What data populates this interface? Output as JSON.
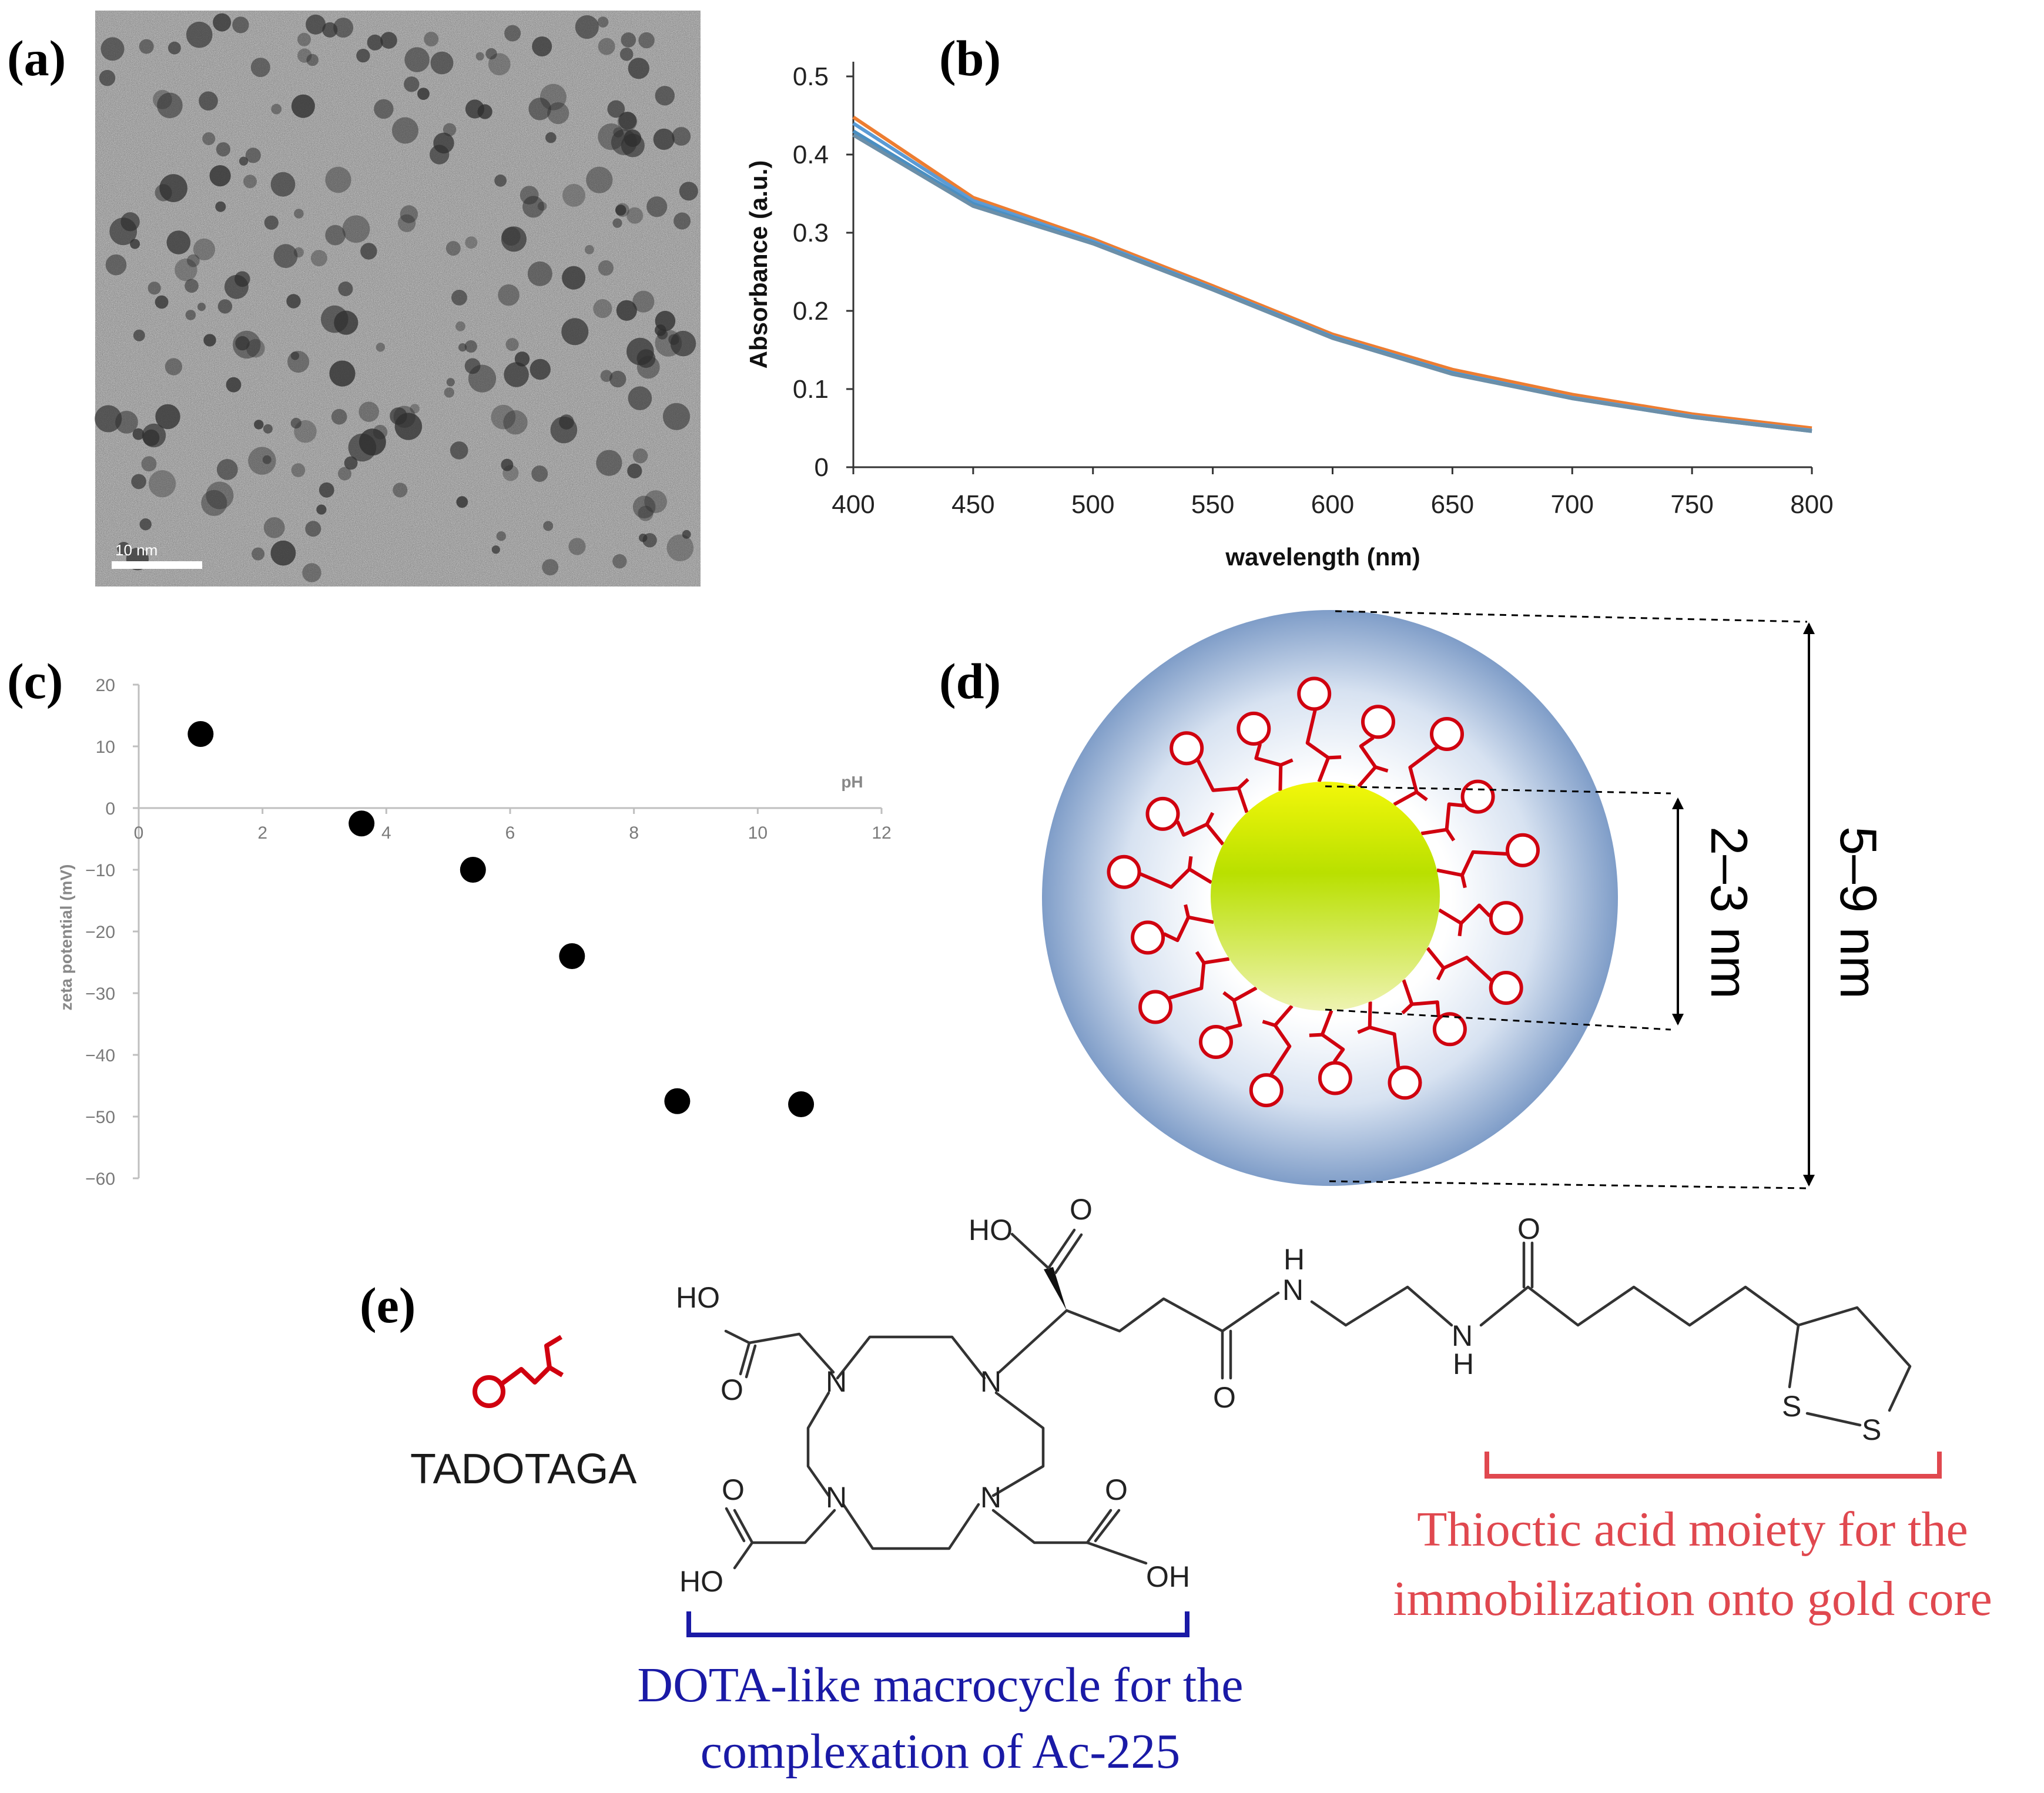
{
  "panels": {
    "a": {
      "label": "(a)",
      "scalebar_text": "10 nm"
    },
    "b": {
      "label": "(b)"
    },
    "c": {
      "label": "(c)"
    },
    "d": {
      "label": "(d)",
      "inner_dim": "2–3 nm",
      "outer_dim": "5–9 nm"
    },
    "e": {
      "label": "(e)",
      "molecule_name": "TADOTAGA",
      "atoms": {
        "HO": "HO",
        "OH": "OH",
        "O": "O",
        "N": "N",
        "H": "H",
        "S": "S"
      },
      "caption_red": [
        "Thioctic acid moiety for the",
        "immobilization onto gold core"
      ],
      "caption_blue": [
        "DOTA-like macrocycle for the",
        "complexation of Ac-225"
      ]
    }
  },
  "chart_data": [
    {
      "type": "line",
      "panel": "b",
      "title": "",
      "xlabel": "wavelength (nm)",
      "ylabel": "Absorbance (a.u.)",
      "xlim": [
        400,
        800
      ],
      "ylim": [
        0,
        0.5
      ],
      "xticks": [
        "400",
        "450",
        "500",
        "550",
        "600",
        "650",
        "700",
        "750",
        "800"
      ],
      "yticks": [
        "0",
        "0.1",
        "0.2",
        "0.3",
        "0.4",
        "0.5"
      ],
      "grid": false,
      "series": [
        {
          "color": "#ed7d31",
          "x": [
            400,
            450,
            500,
            550,
            600,
            650,
            700,
            750,
            800
          ],
          "y": [
            0.448,
            0.345,
            0.292,
            0.232,
            0.17,
            0.125,
            0.093,
            0.068,
            0.05
          ]
        },
        {
          "color": "#5b9bd5",
          "x": [
            400,
            450,
            500,
            550,
            600,
            650,
            700,
            750,
            800
          ],
          "y": [
            0.44,
            0.341,
            0.289,
            0.229,
            0.167,
            0.121,
            0.089,
            0.065,
            0.047
          ]
        },
        {
          "color": "#4a8fc2",
          "x": [
            400,
            450,
            500,
            550,
            600,
            650,
            700,
            750,
            800
          ],
          "y": [
            0.43,
            0.337,
            0.287,
            0.228,
            0.166,
            0.12,
            0.088,
            0.064,
            0.046
          ]
        },
        {
          "color": "#6c8fa8",
          "x": [
            400,
            450,
            500,
            550,
            600,
            650,
            700,
            750,
            800
          ],
          "y": [
            0.425,
            0.334,
            0.286,
            0.227,
            0.165,
            0.119,
            0.088,
            0.064,
            0.046
          ]
        }
      ]
    },
    {
      "type": "scatter",
      "panel": "c",
      "title": "",
      "xlabel": "pH",
      "ylabel": "zeta potential (mV)",
      "xlim": [
        0,
        12
      ],
      "ylim": [
        -60,
        20
      ],
      "xticks": [
        "0",
        "2",
        "4",
        "6",
        "8",
        "10",
        "12"
      ],
      "yticks": [
        "20",
        "10",
        "0",
        "−10",
        "−20",
        "−30",
        "−40",
        "−50",
        "−60"
      ],
      "grid": false,
      "series": [
        {
          "color": "#000000",
          "x": [
            1.0,
            3.6,
            5.4,
            7.0,
            8.7,
            10.7
          ],
          "y": [
            12,
            -2.5,
            -10,
            -24,
            -47.5,
            -48
          ]
        }
      ]
    }
  ]
}
